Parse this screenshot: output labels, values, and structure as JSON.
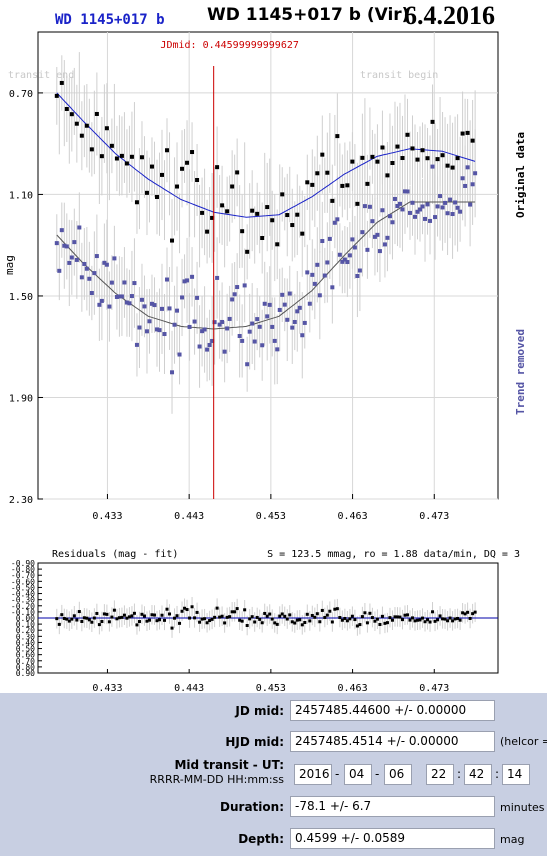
{
  "header": {
    "object": "WD 1145+017 b",
    "title": "WD 1145+017 b (Vir)",
    "date": "6.4.2016"
  },
  "chart_data": [
    {
      "type": "scatter",
      "ylabel": "mag",
      "right_label_top": "Original data",
      "right_label_bottom": "Trend removed",
      "annotation_left": "transit end",
      "annotation_right": "transit begin",
      "jdmid_label": "JDmid: 0.44599999999627",
      "jdmid_x": 0.446,
      "xlim": [
        0.4245,
        0.4808
      ],
      "ylim": [
        2.3,
        0.46
      ],
      "x_ticks": [
        "0.433",
        "0.443",
        "0.453",
        "0.463",
        "0.473"
      ],
      "x_tick_values": [
        0.433,
        0.443,
        0.453,
        0.463,
        0.473
      ],
      "y_ticks": [
        "0.70",
        "1.10",
        "1.50",
        "1.90",
        "2.30"
      ],
      "y_tick_values": [
        0.7,
        1.1,
        1.5,
        1.9,
        2.3
      ],
      "grid": true,
      "series": [
        {
          "color": "#000000",
          "fit_x": [
            0.4268,
            0.43,
            0.434,
            0.438,
            0.442,
            0.446,
            0.45,
            0.454,
            0.458,
            0.462,
            0.466,
            0.47,
            0.474,
            0.478
          ],
          "fit_y": [
            0.7,
            0.81,
            0.94,
            1.04,
            1.12,
            1.17,
            1.19,
            1.18,
            1.11,
            1.02,
            0.95,
            0.92,
            0.93,
            0.97
          ]
        },
        {
          "color": "#5555a5",
          "fit_x": [
            0.4268,
            0.43,
            0.434,
            0.438,
            0.442,
            0.446,
            0.45,
            0.454,
            0.458,
            0.462,
            0.466,
            0.47,
            0.474,
            0.478
          ],
          "fit_y": [
            1.26,
            1.37,
            1.49,
            1.58,
            1.62,
            1.63,
            1.62,
            1.58,
            1.48,
            1.34,
            1.21,
            1.13,
            1.13,
            1.13
          ]
        }
      ]
    },
    {
      "type": "scatter",
      "title": "Residuals (mag - fit)",
      "stats": "S = 123.5 mmag, ro = 1.88 data/min, DQ = 3",
      "xlim": [
        0.4245,
        0.4808
      ],
      "ylim": [
        0.9,
        -0.9
      ],
      "x_ticks": [
        "0.433",
        "0.443",
        "0.453",
        "0.463",
        "0.473"
      ],
      "x_tick_values": [
        0.433,
        0.443,
        0.453,
        0.463,
        0.473
      ],
      "y_ticks": [
        "-0.90",
        "-0.80",
        "-0.70",
        "-0.60",
        "-0.50",
        "-0.40",
        "-0.30",
        "-0.20",
        "-0.10",
        "0.00",
        "0.10",
        "0.20",
        "0.30",
        "0.40",
        "0.50",
        "0.60",
        "0.70",
        "0.80",
        "0.90"
      ],
      "y_tick_values": [
        -0.9,
        -0.8,
        -0.7,
        -0.6,
        -0.5,
        -0.4,
        -0.3,
        -0.2,
        -0.1,
        0,
        0.1,
        0.2,
        0.3,
        0.4,
        0.5,
        0.6,
        0.7,
        0.8,
        0.9
      ]
    }
  ],
  "results": {
    "jd_mid_label": "JD mid:",
    "jd_mid_value": "2457485.44600 +/- 0.00000",
    "hjd_mid_label": "HJD mid:",
    "hjd_mid_value": "2457485.4514 +/- 0.00000",
    "hjd_unit": "(helcor =",
    "mid_transit_label": "Mid transit - UT:",
    "mid_transit_format": "RRRR-MM-DD HH:mm:ss",
    "ut_year": "2016",
    "ut_month": "04",
    "ut_day": "06",
    "ut_hour": "22",
    "ut_min": "42",
    "ut_sec": "14",
    "sep_dash": "-",
    "sep_colon": ":",
    "duration_label": "Duration:",
    "duration_value": "-78.1 +/- 6.7",
    "duration_unit": "minutes",
    "depth_label": "Depth:",
    "depth_value": "0.4599 +/- 0.0589",
    "depth_unit": "mag"
  }
}
